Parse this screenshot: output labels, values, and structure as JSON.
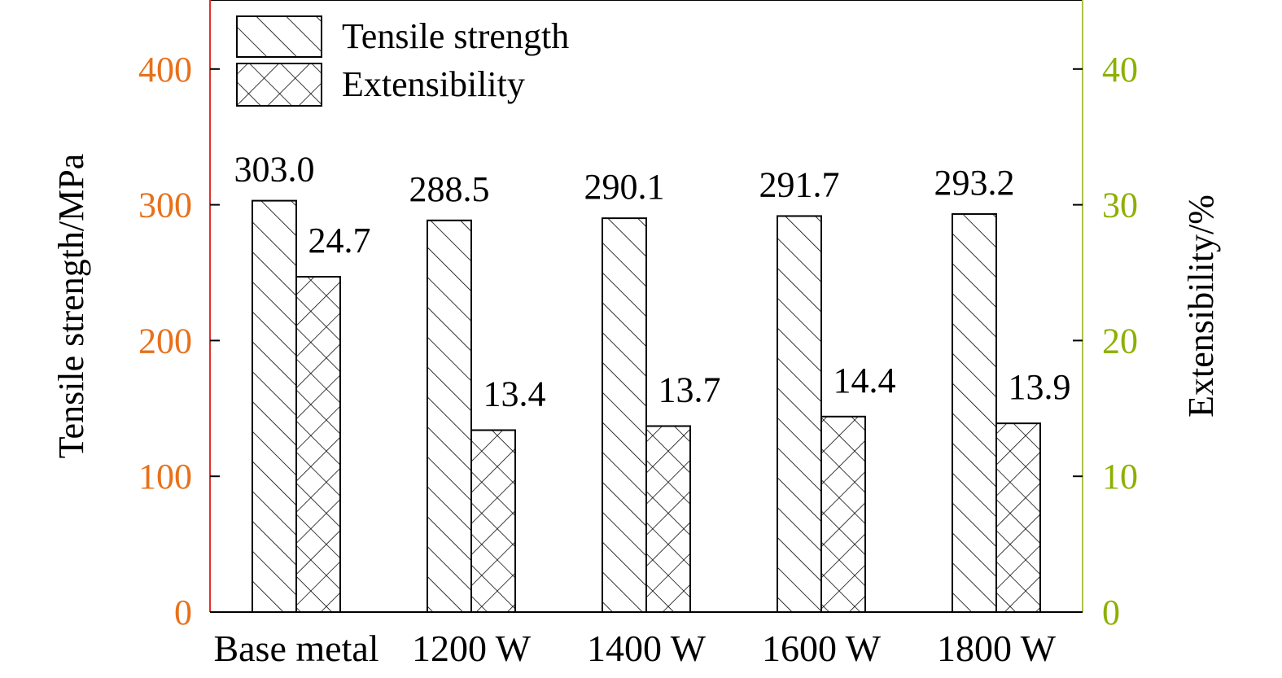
{
  "chart_data": {
    "type": "bar",
    "categories": [
      "Base metal",
      "1200 W",
      "1400 W",
      "1600 W",
      "1800 W"
    ],
    "series": [
      {
        "name": "Tensile strength",
        "axis": "left",
        "pattern": "diagonal-hatch",
        "values": [
          303.0,
          288.5,
          290.1,
          291.7,
          293.2
        ],
        "labels": [
          "303.0",
          "288.5",
          "290.1",
          "291.7",
          "293.2"
        ]
      },
      {
        "name": "Extensibility",
        "axis": "right",
        "pattern": "cross-hatch",
        "values": [
          24.7,
          13.4,
          13.7,
          14.4,
          13.9
        ],
        "labels": [
          "24.7",
          "13.4",
          "13.7",
          "14.4",
          "13.9"
        ]
      }
    ],
    "left_axis": {
      "label": "Tensile strength/MPa",
      "range": [
        0,
        450
      ],
      "ticks": [
        0,
        100,
        200,
        300,
        400
      ],
      "tick_labels": [
        "0",
        "100",
        "200",
        "300",
        "400"
      ],
      "color": "#e8701a",
      "line_color": "#e0302a"
    },
    "right_axis": {
      "label": "Extensibility/%",
      "range": [
        0,
        45
      ],
      "ticks": [
        0,
        10,
        20,
        30,
        40
      ],
      "tick_labels": [
        "0",
        "10",
        "20",
        "30",
        "40"
      ],
      "color": "#8cb000",
      "line_color": "#b0c04a"
    },
    "legend_position": "top-left",
    "grid": false
  }
}
